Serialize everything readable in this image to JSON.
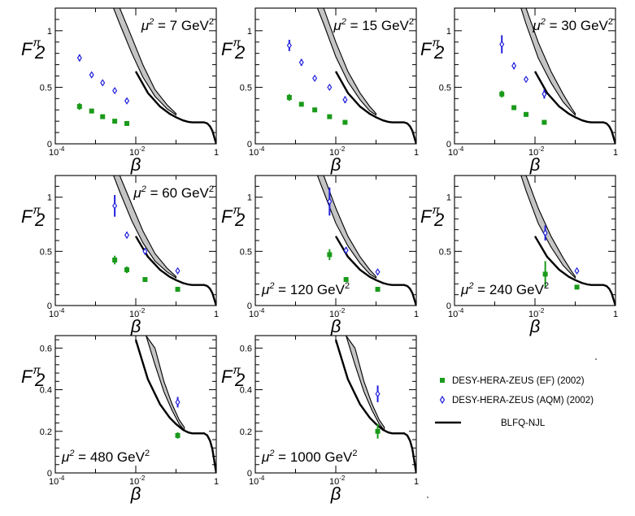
{
  "chart_data": {
    "type": "scatter",
    "figure": "Pion structure function F2 vs beta at several mu^2 scales",
    "y_symbol": "F",
    "y_superscript": "π",
    "y_subscript": "2",
    "x_label": "β",
    "x_scale": "log",
    "xlim": [
      0.0001,
      1
    ],
    "x_tick_labels": {
      "low": "10",
      "low_exp": "-4",
      "mid": "10",
      "mid_exp": "-2",
      "high": "1"
    },
    "legend": {
      "position": "bottom-right",
      "entries": [
        {
          "key": "ef",
          "label": "DESY-HERA-ZEUS (EF) (2002)",
          "marker": "filled-square",
          "color": "#1a9a1a"
        },
        {
          "key": "aqm",
          "label": "DESY-HERA-ZEUS (AQM) (2002)",
          "marker": "open-diamond",
          "color": "#2020dd"
        },
        {
          "key": "blfq",
          "label": "BLFQ-NJL",
          "marker": "line",
          "color": "#000000"
        }
      ]
    },
    "curve_x": [
      0.01,
      0.02,
      0.04,
      0.07,
      0.1,
      0.15,
      0.2,
      0.25,
      0.3,
      0.4,
      0.5,
      0.6,
      0.7,
      0.8,
      0.9,
      0.95,
      1.0
    ],
    "curve_y": [
      0.64,
      0.45,
      0.33,
      0.265,
      0.235,
      0.207,
      0.195,
      0.19,
      0.19,
      0.19,
      0.19,
      0.18,
      0.155,
      0.115,
      0.055,
      0.025,
      0
    ],
    "panels": [
      {
        "id": "p7",
        "scale_prefix": "μ",
        "scale_exp": "2",
        "scale_value": " = 7 GeV",
        "scale_unit_exp": "2",
        "label_pos": "top-right",
        "ylim": [
          0,
          1.2
        ],
        "y_ticks": [
          0,
          0.5,
          1
        ],
        "y_tick_labels": [
          "0",
          "0.5",
          "1"
        ],
        "band_x": [
          0.0028,
          0.004,
          0.008,
          0.015,
          0.03,
          0.06,
          0.1
        ],
        "band_lo": [
          1.2,
          1.06,
          0.8,
          0.59,
          0.42,
          0.31,
          0.255
        ],
        "band_hi": [
          1.2,
          1.2,
          0.94,
          0.7,
          0.48,
          0.345,
          0.268
        ],
        "ef": [
          {
            "x": 0.0004,
            "y": 0.33,
            "err": 0.03
          },
          {
            "x": 0.0008,
            "y": 0.29,
            "err": 0.02
          },
          {
            "x": 0.0015,
            "y": 0.24,
            "err": 0.02
          },
          {
            "x": 0.003,
            "y": 0.2,
            "err": 0.02
          },
          {
            "x": 0.006,
            "y": 0.18,
            "err": 0.01
          }
        ],
        "aqm": [
          {
            "x": 0.0004,
            "y": 0.76,
            "err": 0.03
          },
          {
            "x": 0.0008,
            "y": 0.61,
            "err": 0.02
          },
          {
            "x": 0.0015,
            "y": 0.54,
            "err": 0.02
          },
          {
            "x": 0.003,
            "y": 0.47,
            "err": 0.02
          },
          {
            "x": 0.006,
            "y": 0.38,
            "err": 0.02
          }
        ]
      },
      {
        "id": "p15",
        "scale_prefix": "μ",
        "scale_exp": "2",
        "scale_value": " = 15 GeV",
        "scale_unit_exp": "2",
        "label_pos": "top-right",
        "ylim": [
          0,
          1.2
        ],
        "y_ticks": [
          0,
          0.5,
          1
        ],
        "y_tick_labels": [
          "0",
          "0.5",
          "1"
        ],
        "band_x": [
          0.0035,
          0.005,
          0.01,
          0.02,
          0.04,
          0.07,
          0.1
        ],
        "band_lo": [
          1.2,
          1.06,
          0.77,
          0.55,
          0.39,
          0.29,
          0.255
        ],
        "band_hi": [
          1.2,
          1.2,
          0.9,
          0.64,
          0.45,
          0.33,
          0.268
        ],
        "ef": [
          {
            "x": 0.0007,
            "y": 0.41,
            "err": 0.03
          },
          {
            "x": 0.0014,
            "y": 0.35,
            "err": 0.02
          },
          {
            "x": 0.003,
            "y": 0.3,
            "err": 0.02
          },
          {
            "x": 0.007,
            "y": 0.24,
            "err": 0.02
          },
          {
            "x": 0.017,
            "y": 0.19,
            "err": 0.02
          }
        ],
        "aqm": [
          {
            "x": 0.0007,
            "y": 0.87,
            "err": 0.05
          },
          {
            "x": 0.0014,
            "y": 0.72,
            "err": 0.03
          },
          {
            "x": 0.003,
            "y": 0.58,
            "err": 0.02
          },
          {
            "x": 0.007,
            "y": 0.5,
            "err": 0.02
          },
          {
            "x": 0.017,
            "y": 0.39,
            "err": 0.03
          }
        ]
      },
      {
        "id": "p30",
        "scale_prefix": "μ",
        "scale_exp": "2",
        "scale_value": " = 30 GeV",
        "scale_unit_exp": "2",
        "label_pos": "top-right",
        "ylim": [
          0,
          1.2
        ],
        "y_ticks": [
          0,
          0.5,
          1
        ],
        "y_tick_labels": [
          "0",
          "0.5",
          "1"
        ],
        "band_x": [
          0.0045,
          0.006,
          0.012,
          0.025,
          0.05,
          0.08,
          0.1
        ],
        "band_lo": [
          1.2,
          1.06,
          0.76,
          0.54,
          0.37,
          0.29,
          0.255
        ],
        "band_hi": [
          1.2,
          1.2,
          0.9,
          0.64,
          0.44,
          0.32,
          0.268
        ],
        "ef": [
          {
            "x": 0.0015,
            "y": 0.44,
            "err": 0.03
          },
          {
            "x": 0.003,
            "y": 0.32,
            "err": 0.02
          },
          {
            "x": 0.006,
            "y": 0.26,
            "err": 0.02
          },
          {
            "x": 0.017,
            "y": 0.19,
            "err": 0.02
          }
        ],
        "aqm": [
          {
            "x": 0.0015,
            "y": 0.88,
            "err": 0.08
          },
          {
            "x": 0.003,
            "y": 0.69,
            "err": 0.03
          },
          {
            "x": 0.006,
            "y": 0.57,
            "err": 0.02
          },
          {
            "x": 0.017,
            "y": 0.44,
            "err": 0.04
          }
        ]
      },
      {
        "id": "p60",
        "scale_prefix": "μ",
        "scale_exp": "2",
        "scale_value": " = 60 GeV",
        "scale_unit_exp": "2",
        "label_pos": "top-right",
        "ylim": [
          0,
          1.2
        ],
        "y_ticks": [
          0,
          0.5,
          1
        ],
        "y_tick_labels": [
          "0",
          "0.5",
          "1"
        ],
        "band_x": [
          0.0028,
          0.004,
          0.008,
          0.015,
          0.03,
          0.06,
          0.1
        ],
        "band_lo": [
          1.2,
          1.05,
          0.78,
          0.58,
          0.41,
          0.31,
          0.255
        ],
        "band_hi": [
          1.2,
          1.2,
          0.93,
          0.69,
          0.48,
          0.345,
          0.268
        ],
        "ef": [
          {
            "x": 0.003,
            "y": 0.42,
            "err": 0.04
          },
          {
            "x": 0.006,
            "y": 0.33,
            "err": 0.03
          },
          {
            "x": 0.017,
            "y": 0.24,
            "err": 0.01
          },
          {
            "x": 0.11,
            "y": 0.15,
            "err": 0.01
          }
        ],
        "aqm": [
          {
            "x": 0.003,
            "y": 0.92,
            "err": 0.1
          },
          {
            "x": 0.006,
            "y": 0.65,
            "err": 0.03
          },
          {
            "x": 0.017,
            "y": 0.5,
            "err": 0.03
          },
          {
            "x": 0.11,
            "y": 0.32,
            "err": 0.02
          }
        ]
      },
      {
        "id": "p120",
        "scale_prefix": "μ",
        "scale_exp": "2",
        "scale_value": " = 120 GeV",
        "scale_unit_exp": "2",
        "label_pos": "bottom-left",
        "ylim": [
          0,
          1.2
        ],
        "y_ticks": [
          0,
          0.5,
          1
        ],
        "y_tick_labels": [
          "0",
          "0.5",
          "1"
        ],
        "band_x": [
          0.0035,
          0.005,
          0.01,
          0.02,
          0.04,
          0.07,
          0.1
        ],
        "band_lo": [
          1.2,
          1.05,
          0.76,
          0.55,
          0.39,
          0.29,
          0.255
        ],
        "band_hi": [
          1.2,
          1.2,
          0.9,
          0.64,
          0.45,
          0.33,
          0.268
        ],
        "ef": [
          {
            "x": 0.007,
            "y": 0.47,
            "err": 0.05
          },
          {
            "x": 0.018,
            "y": 0.24,
            "err": 0.01
          },
          {
            "x": 0.11,
            "y": 0.15,
            "err": 0.01
          }
        ],
        "aqm": [
          {
            "x": 0.007,
            "y": 0.96,
            "err": 0.13
          },
          {
            "x": 0.018,
            "y": 0.51,
            "err": 0.03
          },
          {
            "x": 0.11,
            "y": 0.31,
            "err": 0.02
          }
        ]
      },
      {
        "id": "p240",
        "scale_prefix": "μ",
        "scale_exp": "2",
        "scale_value": " = 240 GeV",
        "scale_unit_exp": "2",
        "label_pos": "bottom-left",
        "ylim": [
          0,
          1.2
        ],
        "y_ticks": [
          0,
          0.5,
          1
        ],
        "y_tick_labels": [
          "0",
          "0.5",
          "1"
        ],
        "band_x": [
          0.0045,
          0.006,
          0.012,
          0.025,
          0.05,
          0.08,
          0.1
        ],
        "band_lo": [
          1.2,
          1.06,
          0.76,
          0.54,
          0.37,
          0.29,
          0.255
        ],
        "band_hi": [
          1.2,
          1.2,
          0.9,
          0.64,
          0.44,
          0.32,
          0.268
        ],
        "ef": [
          {
            "x": 0.018,
            "y": 0.29,
            "err": 0.12
          },
          {
            "x": 0.11,
            "y": 0.17,
            "err": 0.01
          }
        ],
        "aqm": [
          {
            "x": 0.018,
            "y": 0.67,
            "err": 0.07
          },
          {
            "x": 0.11,
            "y": 0.32,
            "err": 0.01
          }
        ]
      },
      {
        "id": "p480",
        "scale_prefix": "μ",
        "scale_exp": "2",
        "scale_value": " = 480 GeV",
        "scale_unit_exp": "2",
        "label_pos": "bottom-left",
        "ylim": [
          0,
          0.66
        ],
        "y_ticks": [
          0,
          0.2,
          0.4,
          0.6
        ],
        "y_tick_labels": [
          "0",
          "0.2",
          "0.4",
          "0.6"
        ],
        "band_x": [
          0.018,
          0.03,
          0.05,
          0.08,
          0.12,
          0.16
        ],
        "band_lo": [
          0.66,
          0.52,
          0.39,
          0.3,
          0.235,
          0.205
        ],
        "band_hi": [
          0.66,
          0.6,
          0.44,
          0.33,
          0.255,
          0.22
        ],
        "ef": [
          {
            "x": 0.11,
            "y": 0.18,
            "err": 0.015
          }
        ],
        "aqm": [
          {
            "x": 0.11,
            "y": 0.34,
            "err": 0.025
          }
        ]
      },
      {
        "id": "p1000",
        "scale_prefix": "μ",
        "scale_exp": "2",
        "scale_value": " = 1000 GeV",
        "scale_unit_exp": "2",
        "label_pos": "bottom-left",
        "ylim": [
          0,
          0.66
        ],
        "y_ticks": [
          0,
          0.2,
          0.4,
          0.6
        ],
        "y_tick_labels": [
          "0",
          "0.2",
          "0.4",
          "0.6"
        ],
        "band_x": [
          0.018,
          0.03,
          0.05,
          0.08,
          0.12,
          0.16
        ],
        "band_lo": [
          0.66,
          0.52,
          0.39,
          0.3,
          0.235,
          0.205
        ],
        "band_hi": [
          0.66,
          0.6,
          0.44,
          0.33,
          0.255,
          0.22
        ],
        "ef": [
          {
            "x": 0.11,
            "y": 0.2,
            "err": 0.035
          }
        ],
        "aqm": [
          {
            "x": 0.11,
            "y": 0.38,
            "err": 0.04
          }
        ]
      }
    ]
  }
}
